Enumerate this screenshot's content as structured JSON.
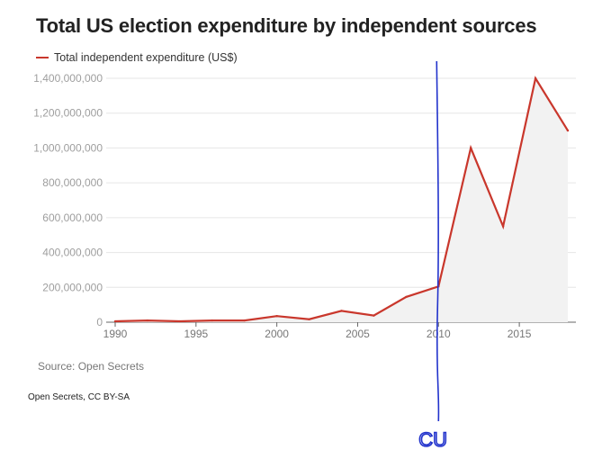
{
  "title": "Total US election expenditure by independent sources",
  "source": "Source: Open Secrets",
  "credit": "Open Secrets, CC BY-SA",
  "colors": {
    "series": "#c9372c",
    "annotation": "#2233cc",
    "area": "#f2f2f2"
  },
  "chart_data": {
    "type": "area",
    "title": "Total US election expenditure by independent sources",
    "xlabel": "",
    "ylabel": "",
    "xlim": [
      1990,
      2018
    ],
    "ylim": [
      0,
      1400000000
    ],
    "grid": true,
    "legend": "top-left",
    "x_ticks": [
      1990,
      1995,
      2000,
      2005,
      2010,
      2015
    ],
    "y_ticks": [
      0,
      200000000,
      400000000,
      600000000,
      800000000,
      1000000000,
      1200000000,
      1400000000
    ],
    "y_tick_labels": [
      "0",
      "200,000,000",
      "400,000,000",
      "600,000,000",
      "800,000,000",
      "1,000,000,000",
      "1,200,000,000",
      "1,400,000,000"
    ],
    "series": [
      {
        "name": "Total independent expenditure (US$)",
        "x": [
          1990,
          1992,
          1994,
          1996,
          1998,
          2000,
          2002,
          2004,
          2006,
          2008,
          2010,
          2012,
          2014,
          2016,
          2018
        ],
        "values": [
          5000000,
          10000000,
          5000000,
          10000000,
          10000000,
          35000000,
          17000000,
          65000000,
          38000000,
          145000000,
          205000000,
          1000000000,
          550000000,
          1400000000,
          1100000000
        ]
      }
    ],
    "annotations": [
      {
        "type": "vertical-line",
        "x": 2010,
        "label": "CU"
      }
    ]
  }
}
